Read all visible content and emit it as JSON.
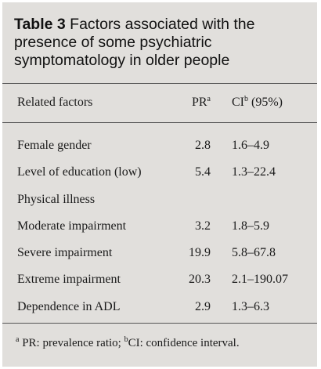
{
  "table": {
    "label": "Table 3",
    "caption_line1": "Factors associated with the",
    "caption_line2": "presence of some psychiatric",
    "caption_line3": "symptomatology in older people"
  },
  "columns": {
    "factor": "Related factors",
    "pr": "PR",
    "pr_sup": "a",
    "ci": "CI",
    "ci_sup": "b",
    "ci_suffix": " (95%)"
  },
  "rows": [
    {
      "factor": "Female gender",
      "pr": "2.8",
      "ci": "1.6–4.9"
    },
    {
      "factor": "Level of education (low)",
      "pr": "5.4",
      "ci": "1.3–22.4"
    },
    {
      "factor": "Physical illness",
      "pr": "",
      "ci": ""
    },
    {
      "factor": "Moderate impairment",
      "pr": "3.2",
      "ci": "1.8–5.9"
    },
    {
      "factor": "Severe impairment",
      "pr": "19.9",
      "ci": "5.8–67.8"
    },
    {
      "factor": "Extreme impairment",
      "pr": "20.3",
      "ci": "2.1–190.07"
    },
    {
      "factor": "Dependence in ADL",
      "pr": "2.9",
      "ci": "1.3–6.3"
    }
  ],
  "footnote": {
    "sup_a": "a",
    "text_a": " PR: prevalence ratio; ",
    "sup_b": "b",
    "text_b": "CI: confidence interval."
  }
}
